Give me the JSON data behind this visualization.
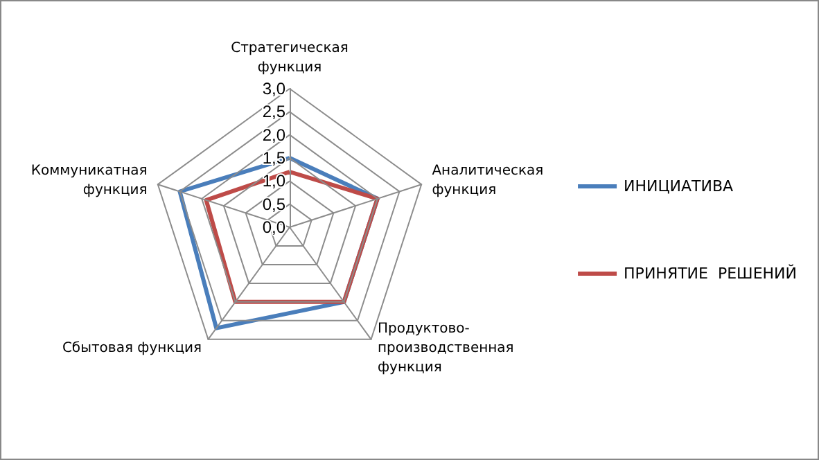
{
  "chart_data": {
    "type": "radar",
    "categories": [
      "Стратегическая функция",
      "Аналитическая функция",
      "Продуктово-производственная функция",
      "Сбытовая функция",
      "Коммуникатная функция"
    ],
    "series": [
      {
        "name": "ИНИЦИАТИВА",
        "color": "#4a7ebb",
        "values": [
          1.5,
          2.0,
          2.0,
          2.7,
          2.5
        ]
      },
      {
        "name": "ПРИНЯТИЕ  РЕШЕНИЙ",
        "color": "#be4b48",
        "values": [
          1.2,
          2.0,
          2.0,
          2.0,
          1.9
        ]
      }
    ],
    "ylim": [
      0,
      3
    ],
    "yticks": [
      {
        "value": 0,
        "label": "0,0"
      },
      {
        "value": 0.5,
        "label": "0,5"
      },
      {
        "value": 1,
        "label": "1,0"
      },
      {
        "value": 1.5,
        "label": "1,5"
      },
      {
        "value": 2,
        "label": "2,0"
      },
      {
        "value": 2.5,
        "label": "2,5"
      },
      {
        "value": 3,
        "label": "3,0"
      }
    ],
    "grid": true,
    "legend": "right",
    "marker": "none",
    "line_style": "solid"
  }
}
